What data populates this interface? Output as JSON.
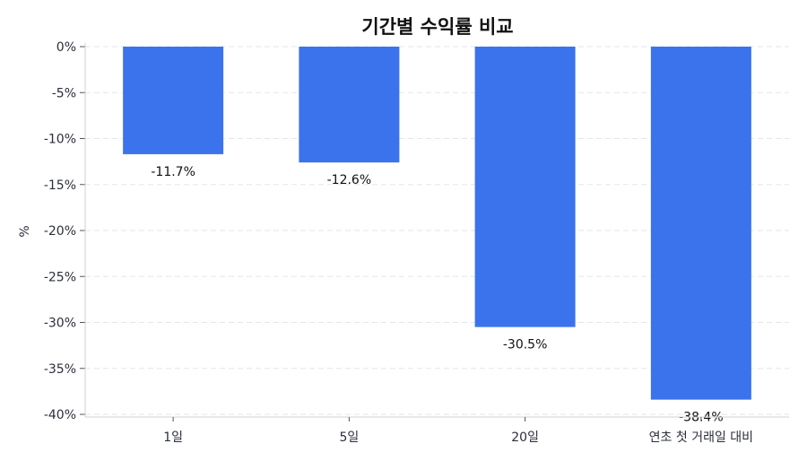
{
  "chart_data": {
    "type": "bar",
    "title": "기간별 수익률 비교",
    "xlabel": "",
    "ylabel": "%",
    "categories": [
      "1일",
      "5일",
      "20일",
      "연초 첫 거래일 대비"
    ],
    "values": [
      -11.7,
      -12.6,
      -30.5,
      -38.4
    ],
    "data_labels": [
      "-11.7%",
      "-12.6%",
      "-30.5%",
      "-38.4%"
    ],
    "ylim": [
      -40,
      0
    ],
    "yticks": [
      0,
      -5,
      -10,
      -15,
      -20,
      -25,
      -30,
      -35,
      -40
    ],
    "ytick_labels": [
      "0%",
      "-5%",
      "-10%",
      "-15%",
      "-20%",
      "-25%",
      "-30%",
      "-35%",
      "-40%"
    ],
    "grid": true,
    "bar_color": "#3b73ed"
  }
}
